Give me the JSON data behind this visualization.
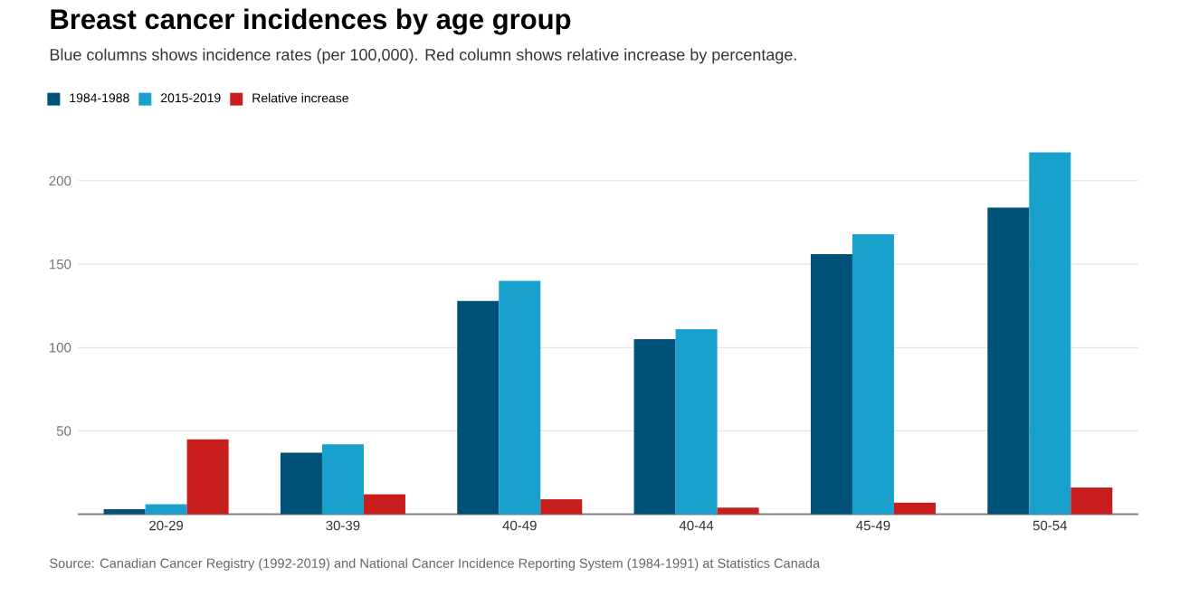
{
  "chart_data": {
    "type": "bar",
    "title": "Breast cancer incidences by age group",
    "subtitle": "Blue columns shows incidence rates (per 100,000). Red column shows relative increase by percentage.",
    "categories": [
      "20-29",
      "30-39",
      "40-49",
      "40-44",
      "45-49",
      "50-54"
    ],
    "series": [
      {
        "name": "1984-1988",
        "color": "#005178",
        "values": [
          3,
          37,
          128,
          105,
          156,
          184
        ]
      },
      {
        "name": "2015-2019",
        "color": "#18a1cd",
        "values": [
          6,
          42,
          140,
          111,
          168,
          217
        ]
      },
      {
        "name": "Relative increase",
        "color": "#c71e1d",
        "values": [
          45,
          12,
          9,
          4,
          7,
          16
        ]
      }
    ],
    "ylim": [
      0,
      217
    ],
    "yticks": [
      50,
      100,
      150,
      200
    ],
    "grid": "y",
    "legend": "top left",
    "annotations": [
      "Source: Canadian Cancer Registry (1992-2019) and National Cancer Incidence Reporting System (1984-1991) at Statistics Canada"
    ]
  }
}
